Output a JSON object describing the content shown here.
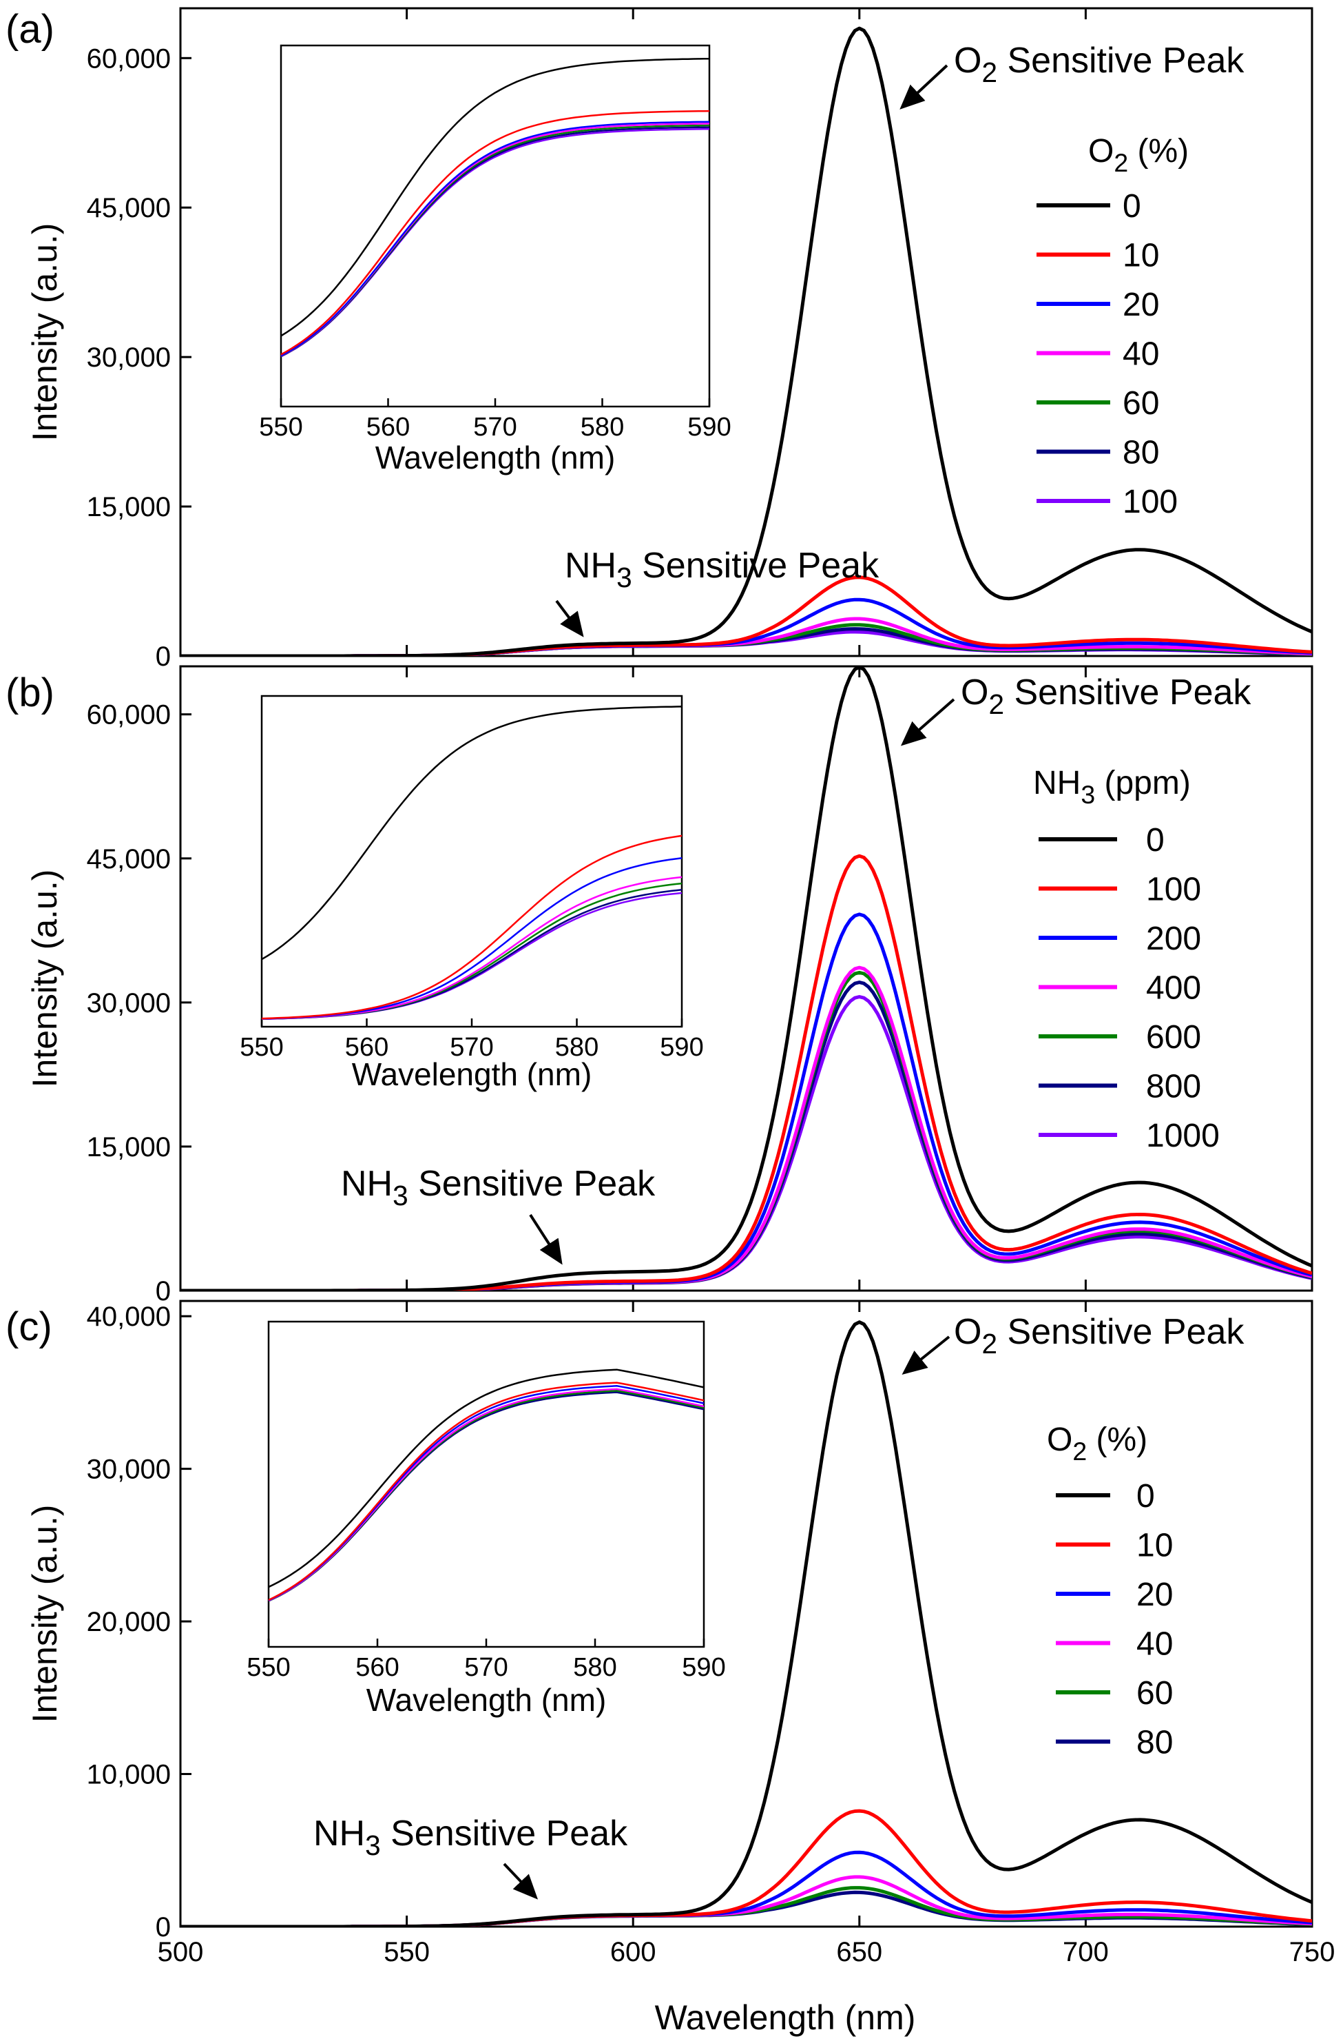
{
  "figure": {
    "xlabel": "Wavelength (nm)",
    "x_ticks": [
      "500",
      "550",
      "600",
      "650",
      "700",
      "750"
    ]
  },
  "chart_data": [
    {
      "type": "line",
      "panel_label": "(a)",
      "xlabel": "Wavelength (nm)",
      "ylabel": "Intensity (a.u.)",
      "xlim": [
        500,
        750
      ],
      "ylim": [
        0,
        65000
      ],
      "y_ticks": [
        "0",
        "15,000",
        "30,000",
        "45,000",
        "60,000"
      ],
      "legend_title": "O2 (%)",
      "legend_title_base": "O",
      "legend_title_sub": "2",
      "legend_title_rest": " (%)",
      "annotations": {
        "o2_peak": {
          "base": "O",
          "sub": "2",
          "rest": " Sensitive Peak"
        },
        "nh3_peak": {
          "base": "NH",
          "sub": "3",
          "rest": " Sensitive Peak"
        }
      },
      "series": [
        {
          "name": "0",
          "color": "#000000",
          "peak": 62000,
          "plateau": 1300,
          "shoulder": 10500
        },
        {
          "name": "10",
          "color": "#ff0000",
          "peak": 7200,
          "plateau": 1100,
          "shoulder": 1500
        },
        {
          "name": "20",
          "color": "#0000ff",
          "peak": 5000,
          "plateau": 1050,
          "shoulder": 1150
        },
        {
          "name": "40",
          "color": "#ff00ff",
          "peak": 3100,
          "plateau": 1020,
          "shoulder": 800
        },
        {
          "name": "60",
          "color": "#008000",
          "peak": 2500,
          "plateau": 1010,
          "shoulder": 650
        },
        {
          "name": "80",
          "color": "#000080",
          "peak": 2100,
          "plateau": 1005,
          "shoulder": 560
        },
        {
          "name": "100",
          "color": "#8000ff",
          "peak": 1800,
          "plateau": 1000,
          "shoulder": 500
        }
      ],
      "inset": {
        "xlabel": "Wavelength (nm)",
        "xlim": [
          550,
          590
        ],
        "x_ticks": [
          "550",
          "560",
          "570",
          "580",
          "590"
        ],
        "series_end_levels": [
          0.965,
          0.82,
          0.79,
          0.785,
          0.78,
          0.775,
          0.77
        ]
      }
    },
    {
      "type": "line",
      "panel_label": "(b)",
      "xlabel": "Wavelength (nm)",
      "ylabel": "Intensity (a.u.)",
      "xlim": [
        500,
        750
      ],
      "ylim": [
        0,
        65000
      ],
      "y_ticks": [
        "0",
        "15,000",
        "30,000",
        "45,000",
        "60,000"
      ],
      "legend_title": "NH3 (ppm)",
      "legend_title_base": "NH",
      "legend_title_sub": "3",
      "legend_title_rest": " (ppm)",
      "annotations": {
        "o2_peak": {
          "base": "O",
          "sub": "2",
          "rest": " Sensitive Peak"
        },
        "nh3_peak": {
          "base": "NH",
          "sub": "3",
          "rest": " Sensitive Peak"
        }
      },
      "series": [
        {
          "name": "0",
          "color": "#000000",
          "peak": 63500,
          "plateau": 2000,
          "shoulder": 11000
        },
        {
          "name": "100",
          "color": "#ff0000",
          "peak": 44500,
          "plateau": 1000,
          "shoulder": 7800
        },
        {
          "name": "200",
          "color": "#0000ff",
          "peak": 38500,
          "plateau": 900,
          "shoulder": 7000
        },
        {
          "name": "400",
          "color": "#ff00ff",
          "peak": 33000,
          "plateau": 850,
          "shoulder": 6300
        },
        {
          "name": "600",
          "color": "#008000",
          "peak": 32500,
          "plateau": 830,
          "shoulder": 6100
        },
        {
          "name": "800",
          "color": "#000080",
          "peak": 31500,
          "plateau": 810,
          "shoulder": 5800
        },
        {
          "name": "1000",
          "color": "#8000ff",
          "peak": 30000,
          "plateau": 800,
          "shoulder": 5500
        }
      ],
      "inset": {
        "xlabel": "Wavelength (nm)",
        "xlim": [
          550,
          590
        ],
        "x_ticks": [
          "550",
          "560",
          "570",
          "580",
          "590"
        ],
        "series_end_levels": [
          0.97,
          0.6,
          0.53,
          0.47,
          0.45,
          0.43,
          0.42
        ]
      }
    },
    {
      "type": "line",
      "panel_label": "(c)",
      "xlabel": "Wavelength (nm)",
      "ylabel": "Intensity (a.u.)",
      "xlim": [
        500,
        750
      ],
      "ylim": [
        0,
        41000
      ],
      "y_ticks": [
        "0",
        "10,000",
        "20,000",
        "30,000",
        "40,000"
      ],
      "legend_title": "O2 (%)",
      "legend_title_base": "O",
      "legend_title_sub": "2",
      "legend_title_rest": " (%)",
      "annotations": {
        "o2_peak": {
          "base": "O",
          "sub": "2",
          "rest": " Sensitive Peak"
        },
        "nh3_peak": {
          "base": "NH",
          "sub": "3",
          "rest": " Sensitive Peak"
        }
      },
      "series": [
        {
          "name": "0",
          "color": "#000000",
          "peak": 39000,
          "plateau": 800,
          "shoulder": 6900
        },
        {
          "name": "10",
          "color": "#ff0000",
          "peak": 7100,
          "plateau": 750,
          "shoulder": 1500
        },
        {
          "name": "20",
          "color": "#0000ff",
          "peak": 4400,
          "plateau": 740,
          "shoulder": 1000
        },
        {
          "name": "40",
          "color": "#ff00ff",
          "peak": 2800,
          "plateau": 730,
          "shoulder": 700
        },
        {
          "name": "60",
          "color": "#008000",
          "peak": 2100,
          "plateau": 720,
          "shoulder": 550
        },
        {
          "name": "80",
          "color": "#000080",
          "peak": 1800,
          "plateau": 710,
          "shoulder": 480
        }
      ],
      "inset": {
        "xlabel": "Wavelength (nm)",
        "xlim": [
          550,
          590
        ],
        "x_ticks": [
          "550",
          "560",
          "570",
          "580",
          "590"
        ],
        "series_end_levels": [
          0.86,
          0.82,
          0.81,
          0.8,
          0.795,
          0.79
        ]
      }
    }
  ]
}
